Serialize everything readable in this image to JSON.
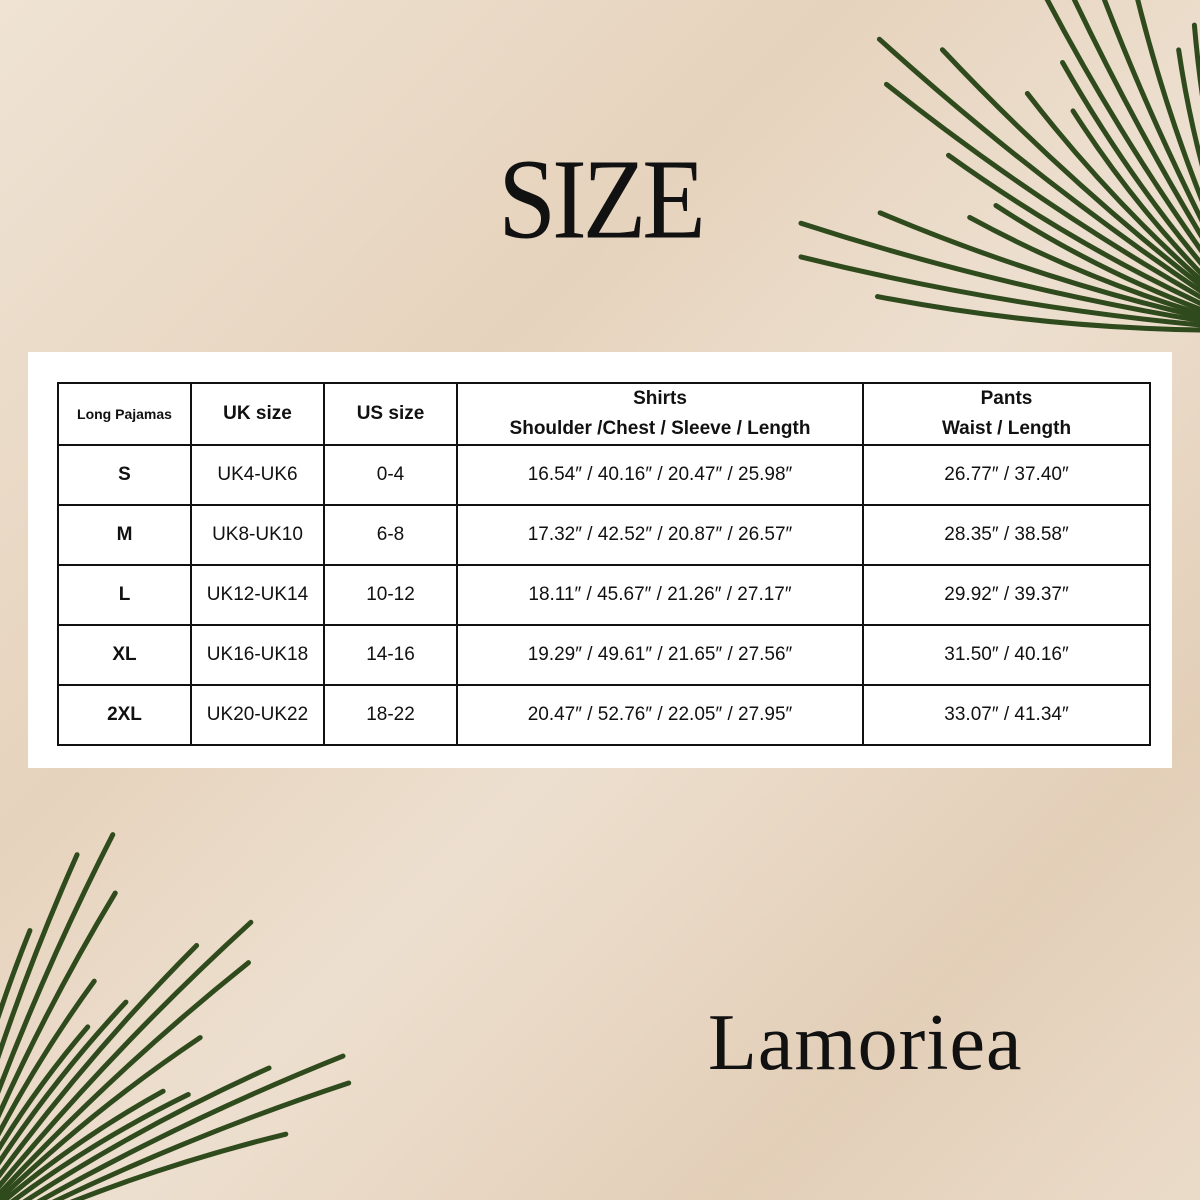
{
  "title": "SIZE",
  "brand": "Lamoriea",
  "table": {
    "headers": [
      "Long Pajamas",
      "UK size",
      "US size",
      [
        "Shirts",
        "Shoulder /Chest / Sleeve / Length"
      ],
      [
        "Pants",
        "Waist / Length"
      ]
    ],
    "rows": [
      [
        "S",
        "UK4-UK6",
        "0-4",
        "16.54″ / 40.16″ /  20.47″ / 25.98″",
        "26.77″ /  37.40″"
      ],
      [
        "M",
        "UK8-UK10",
        "6-8",
        "17.32″ / 42.52″ /  20.87″ /  26.57″",
        "28.35″ / 38.58″"
      ],
      [
        "L",
        "UK12-UK14",
        "10-12",
        "18.11″ /  45.67″ / 21.26″  / 27.17″",
        "29.92″ / 39.37″"
      ],
      [
        "XL",
        "UK16-UK18",
        "14-16",
        "19.29″ /  49.61″ /  21.65″ /  27.56″",
        "31.50″ / 40.16″"
      ],
      [
        "2XL",
        "UK20-UK22",
        "18-22",
        "20.47″ / 52.76″ / 22.05″ /  27.95″",
        "33.07″ / 41.34″"
      ]
    ]
  },
  "colors": {
    "background": "#e9d9c6",
    "leaf": "#2f4a1c",
    "text": "#111111"
  }
}
